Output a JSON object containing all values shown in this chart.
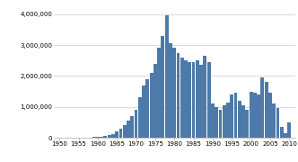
{
  "years": [
    1950,
    1951,
    1952,
    1953,
    1954,
    1955,
    1956,
    1957,
    1958,
    1959,
    1960,
    1961,
    1962,
    1963,
    1964,
    1965,
    1966,
    1967,
    1968,
    1969,
    1970,
    1971,
    1972,
    1973,
    1974,
    1975,
    1976,
    1977,
    1978,
    1979,
    1980,
    1981,
    1982,
    1983,
    1984,
    1985,
    1986,
    1987,
    1988,
    1989,
    1990,
    1991,
    1992,
    1993,
    1994,
    1995,
    1996,
    1997,
    1998,
    1999,
    2000,
    2001,
    2002,
    2003,
    2004,
    2005,
    2006,
    2007,
    2008,
    2009,
    2010
  ],
  "values": [
    2000,
    2000,
    3000,
    3000,
    4000,
    5000,
    6000,
    8000,
    10000,
    15000,
    20000,
    30000,
    50000,
    80000,
    130000,
    200000,
    280000,
    400000,
    550000,
    700000,
    900000,
    1300000,
    1700000,
    1900000,
    2100000,
    2400000,
    2900000,
    3300000,
    3950000,
    3050000,
    2900000,
    2750000,
    2600000,
    2500000,
    2450000,
    2450000,
    2500000,
    2350000,
    2650000,
    2450000,
    1100000,
    1000000,
    900000,
    1050000,
    1150000,
    1400000,
    1450000,
    1200000,
    1050000,
    900000,
    1500000,
    1450000,
    1400000,
    1950000,
    1800000,
    1450000,
    1100000,
    950000,
    350000,
    150000,
    500000
  ],
  "bar_color": "#4d7aa8",
  "background_color": "#ffffff",
  "grid_color": "#cccccc",
  "ylim": [
    0,
    4300000
  ],
  "yticks": [
    0,
    1000000,
    2000000,
    3000000,
    4000000
  ],
  "xticks": [
    1950,
    1955,
    1960,
    1965,
    1970,
    1975,
    1980,
    1985,
    1990,
    1995,
    2000,
    2005,
    2010
  ]
}
